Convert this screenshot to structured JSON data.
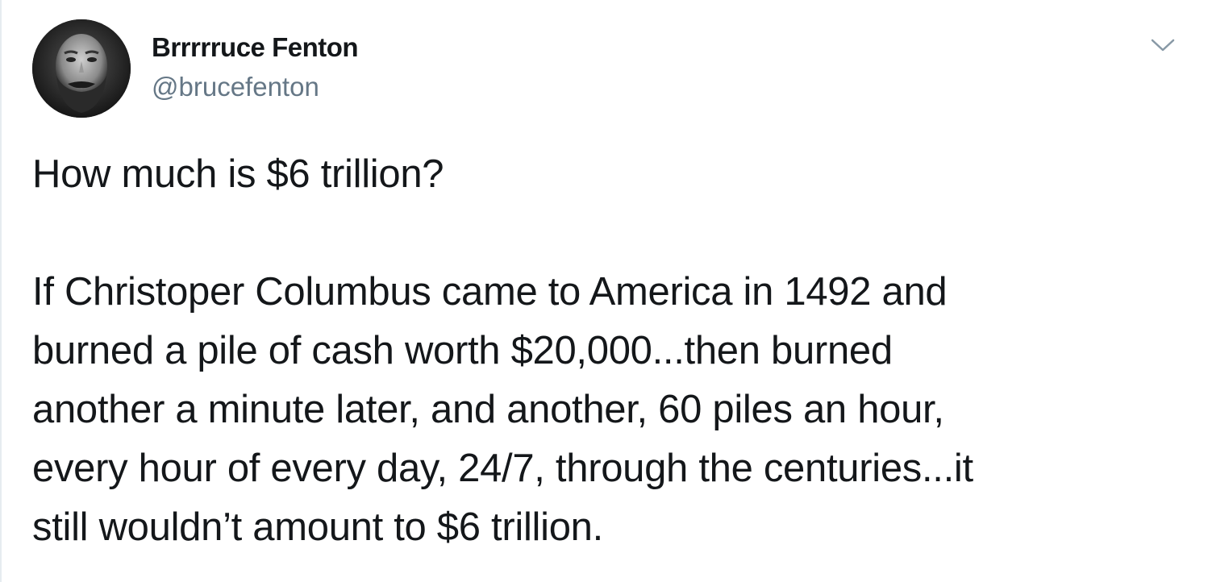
{
  "tweet": {
    "author": {
      "display_name": "Brrrrruce Fenton",
      "handle": "@brucefenton",
      "avatar_icon": "avatar-photo"
    },
    "menu_icon": "chevron-down-icon",
    "text_paragraphs": [
      "How much is $6 trillion?",
      "If Christoper Columbus came to America in 1492 and\nburned a pile of cash worth $20,000...then burned\nanother a minute later, and another, 60 piles an hour,\nevery hour of every day, 24/7, through the centuries...it\nstill wouldn’t amount to $6 trillion."
    ]
  },
  "colors": {
    "text_primary": "#14171a",
    "text_secondary": "#657786",
    "border": "#e6ecf0"
  }
}
